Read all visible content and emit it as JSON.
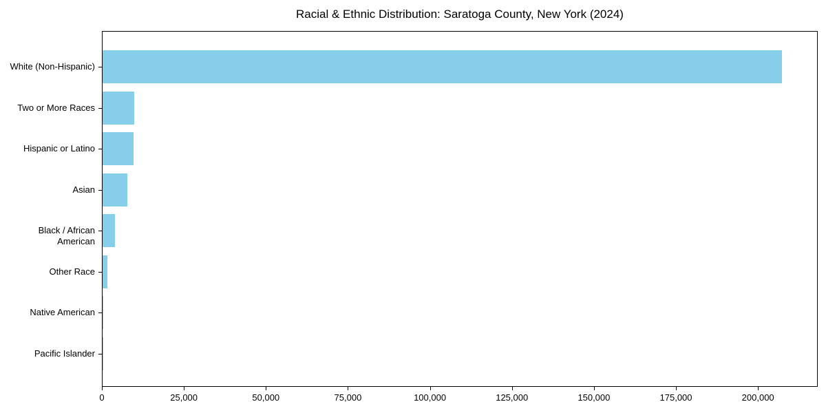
{
  "chart_data": {
    "type": "bar",
    "orientation": "horizontal",
    "title": "Racial & Ethnic Distribution: Saratoga County, New York (2024)",
    "categories": [
      "White (Non-Hispanic)",
      "Two or More Races",
      "Hispanic or Latino",
      "Asian",
      "Black / African American",
      "Other Race",
      "Native American",
      "Pacific Islander"
    ],
    "values": [
      207000,
      9700,
      9500,
      7500,
      3700,
      1500,
      250,
      60
    ],
    "bar_color": "#87CEEB",
    "xlabel": "",
    "ylabel": "",
    "xlim": [
      0,
      217800
    ],
    "x_ticks": [
      0,
      25000,
      50000,
      75000,
      100000,
      125000,
      150000,
      175000,
      200000
    ],
    "x_tick_labels": [
      "0",
      "25,000",
      "50,000",
      "75,000",
      "100,000",
      "125,000",
      "150,000",
      "175,000",
      "200,000"
    ],
    "grid": false,
    "legend": null,
    "spines": "full-box",
    "background_color": "#ffffff",
    "text_color": "#000000"
  }
}
